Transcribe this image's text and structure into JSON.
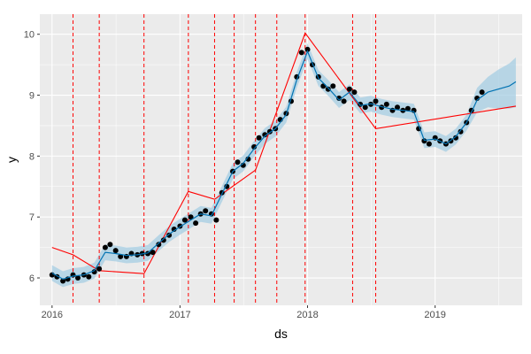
{
  "chart_data": {
    "type": "scatter",
    "title": "",
    "xlabel": "ds",
    "ylabel": "y",
    "xlim": [
      "2015-11-27",
      "2019-09-07"
    ],
    "ylim": [
      5.55,
      10.33
    ],
    "x_ticks": [
      "2016",
      "2017",
      "2018",
      "2019"
    ],
    "y_ticks": [
      6,
      7,
      8,
      9,
      10
    ],
    "grid": true,
    "panel_background": "#ebebeb",
    "colors": {
      "observed": "#000000",
      "forecast": "#0072b2",
      "uncertainty": "#a6cee3",
      "trend": "#ff0000",
      "changepoint": "#ff0000"
    },
    "changepoints": [
      "2016-03-01",
      "2016-05-15",
      "2016-09-20",
      "2017-01-25",
      "2017-04-10",
      "2017-06-05",
      "2017-08-05",
      "2017-10-05",
      "2017-12-25",
      "2018-05-10",
      "2018-07-15"
    ],
    "trend": {
      "x": [
        "2016-01-01",
        "2016-03-01",
        "2016-05-15",
        "2016-09-20",
        "2017-01-25",
        "2017-04-10",
        "2017-08-05",
        "2017-12-25",
        "2018-07-15",
        "2019-08-20"
      ],
      "y": [
        6.5,
        6.38,
        6.12,
        6.07,
        7.42,
        7.29,
        7.77,
        10.02,
        8.45,
        8.82
      ]
    },
    "observed": {
      "x": [
        "2016-01-01",
        "2016-01-15",
        "2016-02-01",
        "2016-02-15",
        "2016-03-01",
        "2016-03-15",
        "2016-04-01",
        "2016-04-15",
        "2016-05-01",
        "2016-05-15",
        "2016-06-01",
        "2016-06-15",
        "2016-07-01",
        "2016-07-15",
        "2016-08-01",
        "2016-08-15",
        "2016-09-01",
        "2016-09-15",
        "2016-10-01",
        "2016-10-15",
        "2016-11-01",
        "2016-11-15",
        "2016-12-01",
        "2016-12-15",
        "2017-01-01",
        "2017-01-15",
        "2017-02-01",
        "2017-02-15",
        "2017-03-01",
        "2017-03-15",
        "2017-04-01",
        "2017-04-15",
        "2017-05-01",
        "2017-05-15",
        "2017-06-01",
        "2017-06-15",
        "2017-07-01",
        "2017-07-15",
        "2017-08-01",
        "2017-08-15",
        "2017-09-01",
        "2017-09-15",
        "2017-10-01",
        "2017-10-15",
        "2017-11-01",
        "2017-11-15",
        "2017-12-01",
        "2017-12-15",
        "2018-01-01",
        "2018-01-15",
        "2018-02-01",
        "2018-02-15",
        "2018-03-01",
        "2018-03-15",
        "2018-04-01",
        "2018-04-15",
        "2018-05-01",
        "2018-05-15",
        "2018-06-01",
        "2018-06-15",
        "2018-07-01",
        "2018-07-15",
        "2018-08-01",
        "2018-08-15",
        "2018-09-01",
        "2018-09-15",
        "2018-10-01",
        "2018-10-15",
        "2018-11-01",
        "2018-11-15",
        "2018-12-01",
        "2018-12-15",
        "2019-01-01",
        "2019-01-15",
        "2019-02-01",
        "2019-02-15",
        "2019-03-01",
        "2019-03-15",
        "2019-04-01",
        "2019-04-15",
        "2019-05-01",
        "2019-05-15"
      ],
      "y": [
        6.05,
        6.02,
        5.95,
        5.98,
        6.05,
        6.0,
        6.05,
        6.02,
        6.1,
        6.15,
        6.5,
        6.55,
        6.45,
        6.35,
        6.35,
        6.4,
        6.38,
        6.4,
        6.4,
        6.42,
        6.55,
        6.62,
        6.7,
        6.8,
        6.85,
        6.95,
        7.0,
        6.9,
        7.05,
        7.1,
        7.05,
        6.95,
        7.4,
        7.5,
        7.75,
        7.9,
        7.85,
        7.95,
        8.15,
        8.3,
        8.35,
        8.4,
        8.45,
        8.6,
        8.7,
        8.9,
        9.3,
        9.7,
        9.75,
        9.5,
        9.3,
        9.15,
        9.1,
        9.15,
        8.95,
        8.9,
        9.1,
        9.05,
        8.85,
        8.8,
        8.85,
        8.9,
        8.8,
        8.85,
        8.75,
        8.8,
        8.75,
        8.78,
        8.75,
        8.45,
        8.25,
        8.2,
        8.3,
        8.25,
        8.2,
        8.25,
        8.3,
        8.4,
        8.55,
        8.75,
        8.95,
        9.05
      ]
    },
    "forecast": {
      "x": [
        "2016-01-01",
        "2016-02-01",
        "2016-03-01",
        "2016-04-01",
        "2016-05-01",
        "2016-06-01",
        "2016-07-01",
        "2016-08-01",
        "2016-09-01",
        "2016-10-01",
        "2016-11-01",
        "2016-12-01",
        "2017-01-01",
        "2017-02-01",
        "2017-03-01",
        "2017-04-01",
        "2017-05-01",
        "2017-06-01",
        "2017-07-01",
        "2017-08-01",
        "2017-09-01",
        "2017-10-01",
        "2017-11-01",
        "2017-12-01",
        "2018-01-01",
        "2018-02-01",
        "2018-03-01",
        "2018-04-01",
        "2018-05-01",
        "2018-06-01",
        "2018-07-01",
        "2018-08-01",
        "2018-09-01",
        "2018-10-01",
        "2018-11-01",
        "2018-12-01",
        "2019-01-01",
        "2019-02-01",
        "2019-03-01",
        "2019-04-01",
        "2019-05-01",
        "2019-06-01",
        "2019-07-01",
        "2019-08-01",
        "2019-08-20"
      ],
      "y": [
        6.08,
        5.98,
        6.03,
        6.05,
        6.12,
        6.42,
        6.4,
        6.37,
        6.38,
        6.41,
        6.57,
        6.72,
        6.84,
        6.95,
        7.05,
        7.02,
        7.38,
        7.75,
        7.88,
        8.12,
        8.33,
        8.45,
        8.68,
        9.25,
        9.72,
        9.28,
        9.12,
        8.92,
        9.05,
        8.83,
        8.86,
        8.81,
        8.77,
        8.75,
        8.73,
        8.26,
        8.28,
        8.2,
        8.32,
        8.55,
        8.92,
        9.05,
        9.1,
        9.15,
        9.22
      ],
      "lower": [
        5.95,
        5.85,
        5.9,
        5.92,
        5.99,
        6.29,
        6.27,
        6.24,
        6.25,
        6.28,
        6.44,
        6.59,
        6.71,
        6.82,
        6.92,
        6.89,
        7.25,
        7.62,
        7.75,
        7.99,
        8.2,
        8.32,
        8.55,
        9.12,
        9.59,
        9.15,
        8.99,
        8.79,
        8.92,
        8.7,
        8.73,
        8.68,
        8.64,
        8.62,
        8.6,
        8.13,
        8.15,
        8.07,
        8.19,
        8.42,
        8.72,
        8.8,
        8.78,
        8.78,
        8.8
      ],
      "upper": [
        6.21,
        6.11,
        6.16,
        6.18,
        6.25,
        6.55,
        6.53,
        6.5,
        6.51,
        6.54,
        6.7,
        6.85,
        6.97,
        7.08,
        7.18,
        7.15,
        7.51,
        7.88,
        8.01,
        8.25,
        8.46,
        8.58,
        8.81,
        9.38,
        9.85,
        9.41,
        9.25,
        9.05,
        9.18,
        8.96,
        8.99,
        8.94,
        8.9,
        8.88,
        8.86,
        8.39,
        8.41,
        8.33,
        8.45,
        8.68,
        9.12,
        9.3,
        9.42,
        9.52,
        9.62
      ]
    }
  }
}
